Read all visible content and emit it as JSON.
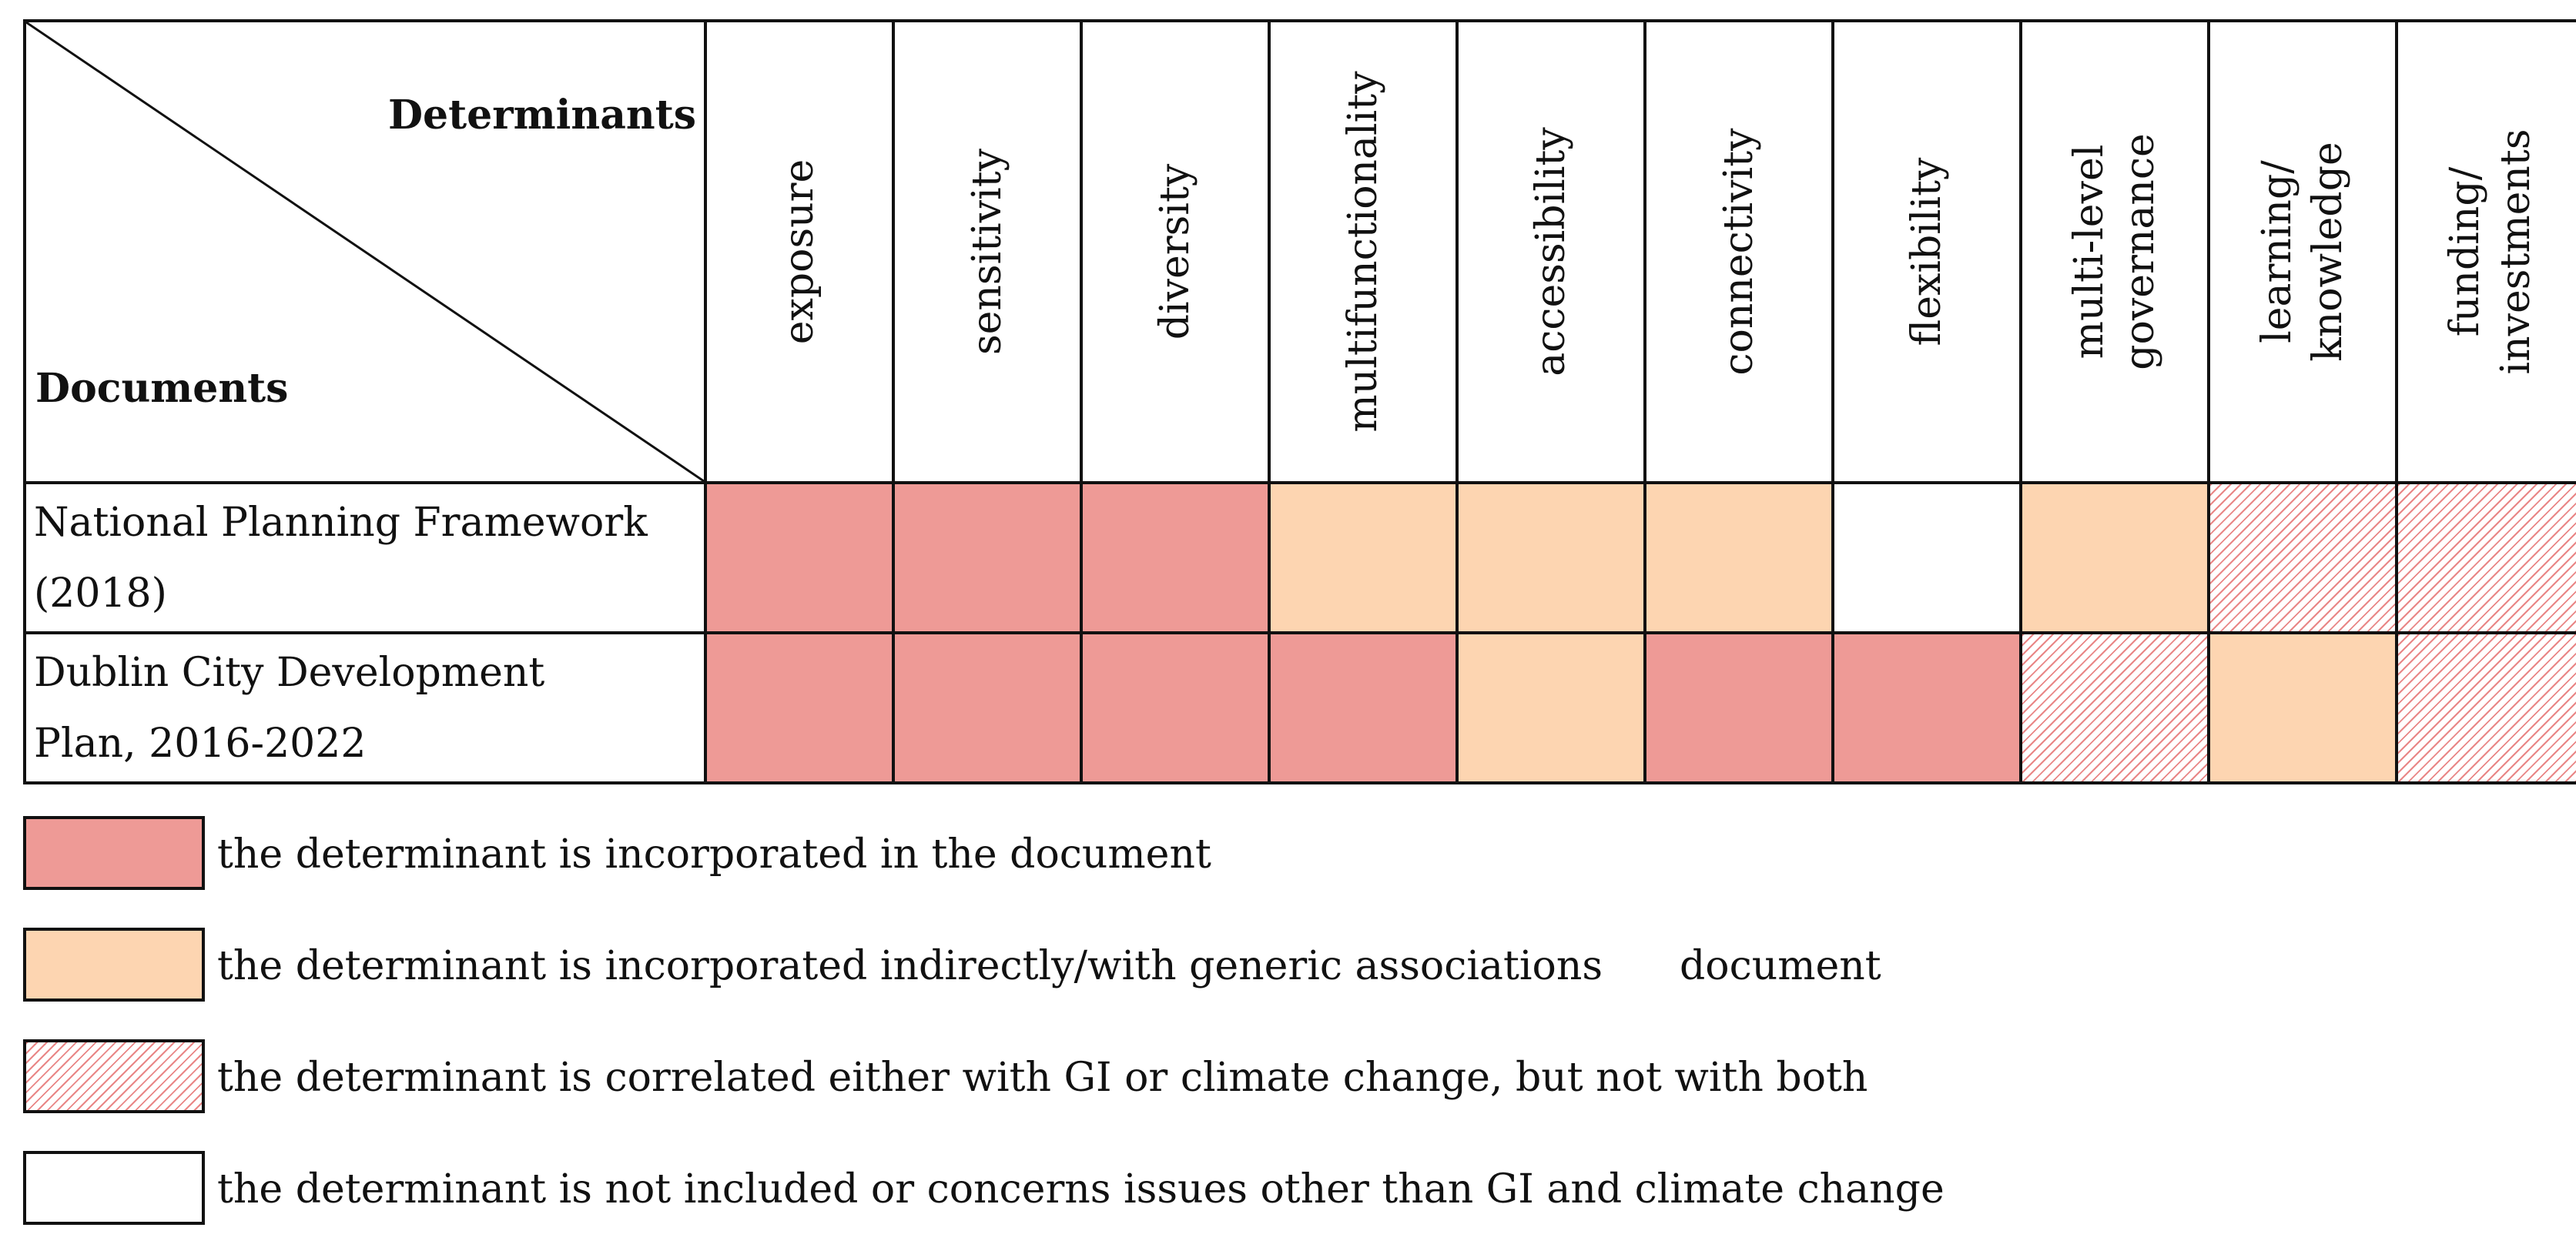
{
  "table": {
    "corner_top_label": "Determinants",
    "corner_bottom_label": "Documents",
    "columns": [
      {
        "lines": [
          "exposure"
        ]
      },
      {
        "lines": [
          "sensitivity"
        ]
      },
      {
        "lines": [
          "diversity"
        ]
      },
      {
        "lines": [
          "multifunctionality"
        ]
      },
      {
        "lines": [
          "accessibility"
        ]
      },
      {
        "lines": [
          "connectivity"
        ]
      },
      {
        "lines": [
          "flexibility"
        ]
      },
      {
        "lines": [
          "multi-level",
          "governance"
        ]
      },
      {
        "lines": [
          "learning/",
          "knowledge"
        ]
      },
      {
        "lines": [
          "funding/",
          "investments"
        ]
      }
    ],
    "rows": [
      {
        "label_lines": [
          "National Planning Framework",
          "(2018)"
        ],
        "cells": [
          "incorporated",
          "incorporated",
          "incorporated",
          "indirect",
          "indirect",
          "indirect",
          "not-included",
          "indirect",
          "correlated",
          "correlated"
        ]
      },
      {
        "label_lines": [
          "Dublin City Development",
          "Plan, 2016-2022"
        ],
        "cells": [
          "incorporated",
          "incorporated",
          "incorporated",
          "incorporated",
          "indirect",
          "incorporated",
          "incorporated",
          "correlated",
          "indirect",
          "correlated"
        ]
      }
    ]
  },
  "colors": {
    "incorporated": "#ee9a96",
    "indirect": "#fdd5b1",
    "correlated_hatch": "#e98686",
    "not_included": "#ffffff"
  },
  "legend": [
    {
      "key": "incorporated",
      "label": "the determinant is incorporated in the document",
      "extra": ""
    },
    {
      "key": "indirect",
      "label": "the determinant is incorporated indirectly/with generic associations",
      "extra": "document"
    },
    {
      "key": "correlated",
      "label": "the determinant is correlated either with GI or climate change, but not with both",
      "extra": ""
    },
    {
      "key": "not-included",
      "label": "the determinant is not included or concerns issues other than GI and climate change",
      "extra": ""
    }
  ]
}
